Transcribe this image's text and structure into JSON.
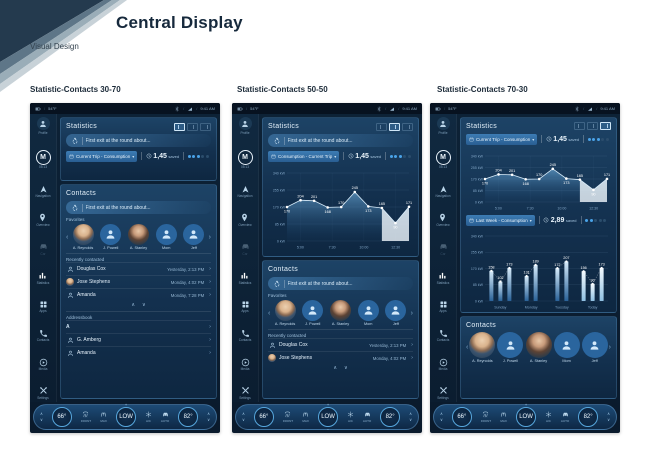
{
  "header": {
    "title": "Central Display",
    "subtitle": "Visual Design"
  },
  "screen_labels": [
    "Statistic-Contacts 30-70",
    "Statistic-Contacts 50-50",
    "Statistic-Contacts 70-30"
  ],
  "shared": {
    "status_bar": {
      "temp": "54°F",
      "time": "9:41 AM"
    },
    "sidebar": [
      {
        "icon": "person-icon",
        "label": "Profile"
      },
      {
        "icon": "m-badge",
        "badge": "M",
        "label": "05:13"
      },
      {
        "icon": "navigation-icon",
        "label": "Navigation"
      },
      {
        "icon": "overview-icon",
        "label": "Overview"
      },
      {
        "icon": "car-icon",
        "label": "Car"
      },
      {
        "icon": "statistics-icon",
        "label": "Statistics"
      },
      {
        "icon": "apps-icon",
        "label": "Apps"
      },
      {
        "icon": "phone-icon",
        "label": "Contacts"
      },
      {
        "icon": "media-icon",
        "label": "Media"
      },
      {
        "icon": "settings-icon",
        "label": "Settings"
      }
    ],
    "notification": {
      "text": "First exit at the round about..."
    },
    "favorites_label": "Favorites",
    "favorites": [
      {
        "name": "A. Reynolds",
        "type": "photo-male"
      },
      {
        "name": "J. Powell",
        "type": "icon"
      },
      {
        "name": "A. Stanley",
        "type": "photo-female"
      },
      {
        "name": "Mom",
        "type": "icon"
      },
      {
        "name": "Jeff",
        "type": "icon"
      }
    ],
    "recent_label": "Recently contacted",
    "recent": [
      {
        "name": "Douglas Cox",
        "time": "Yesterday, 2:13 PM",
        "type": "icon"
      },
      {
        "name": "Jose Stephens",
        "time": "Monday, 4:02 PM",
        "type": "photo-male"
      },
      {
        "name": "Amanda",
        "time": "Monday, 7:28 PM",
        "type": "icon"
      }
    ],
    "climate": {
      "left_temp": "66°",
      "fan_level": "LOW",
      "right_temp": "82°",
      "front_label": "FRONT",
      "max_label": "MAX",
      "ac_label": "A/C",
      "auto_label": "AUTO",
      "plus": "+",
      "minus": "−",
      "up": "∧",
      "down": "∨"
    }
  },
  "screens": [
    {
      "statistics_title": "Statistics",
      "contacts_title": "Contacts",
      "layout_active": 0,
      "stat_rows": [
        {
          "selector": "Current Trip - Consumption",
          "value": "1,45",
          "suffix": "saved",
          "dots_filled": 3,
          "dots_total": 5
        }
      ],
      "addressbook_label": "Addressbook",
      "addressbook": [
        {
          "name": "A",
          "type": "letter"
        },
        {
          "name": "G. Amberg",
          "type": "icon"
        },
        {
          "name": "Amanda",
          "type": "icon"
        }
      ]
    },
    {
      "statistics_title": "Statistics",
      "contacts_title": "Contacts",
      "layout_active": 1,
      "stat_rows": [
        {
          "selector": "Consumption - Current Trip",
          "value": "1,45",
          "suffix": "saved",
          "dots_filled": 3,
          "dots_total": 5
        }
      ]
    },
    {
      "statistics_title": "Statistics",
      "contacts_title": "Contacts",
      "layout_active": 2,
      "stat_rows": [
        {
          "selector": "Current Trip - Consumption",
          "value": "1,45",
          "suffix": "saved",
          "dots_filled": 3,
          "dots_total": 5
        },
        {
          "selector": "Last Week - Consumption",
          "value": "2,89",
          "suffix": "saved",
          "dots_filled": 2,
          "dots_total": 5
        }
      ]
    }
  ],
  "chart_data": [
    {
      "id": "consumption-current-trip",
      "type": "area",
      "title": "Consumption - Current Trip",
      "unit": "kW",
      "x_ticks": [
        "5:00",
        "7:30",
        "10:00",
        "12:30"
      ],
      "y_ticks": [
        {
          "label": "340 kW",
          "value": 340
        },
        {
          "label": "255 kW",
          "value": 255
        },
        {
          "label": "170 kW",
          "value": 170
        },
        {
          "label": "85 kW",
          "value": 85
        },
        {
          "label": "0 kW",
          "value": 0
        }
      ],
      "ylim": [
        0,
        340
      ],
      "values": [
        170,
        204,
        201,
        168,
        170,
        245,
        173,
        165,
        90,
        171
      ],
      "label_below": [
        0,
        3,
        6,
        8
      ],
      "highlight_from_index": 7,
      "grid": true,
      "legend": false
    },
    {
      "id": "last-week-consumption",
      "type": "bar",
      "title": "Last Week - Consumption",
      "unit": "kW",
      "categories": [
        "Sunday",
        "Monday",
        "Tuesday",
        "Today"
      ],
      "groups": [
        [
          158,
          102,
          173
        ],
        [
          131,
          189
        ],
        [
          172,
          207
        ],
        [
          156,
          90,
          173
        ]
      ],
      "y_ticks": [
        {
          "label": "340 kW",
          "value": 340
        },
        {
          "label": "255 kW",
          "value": 255
        },
        {
          "label": "170 kW",
          "value": 170
        },
        {
          "label": "85 kW",
          "value": 85
        },
        {
          "label": "0 kW",
          "value": 0
        }
      ],
      "ylim": [
        0,
        340
      ],
      "grid": true,
      "legend": false
    }
  ]
}
